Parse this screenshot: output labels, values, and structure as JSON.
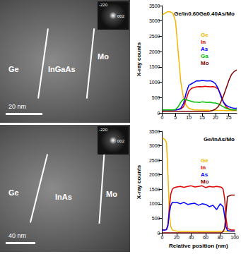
{
  "micrographs": [
    {
      "labels": [
        "Ge",
        "InGaAs",
        "Mo"
      ],
      "scale_bar": "20 nm",
      "inset_labels": [
        "-220",
        "002"
      ]
    },
    {
      "labels": [
        "Ge",
        "InAs",
        "Mo"
      ],
      "scale_bar": "40 nm",
      "inset_labels": [
        "-220",
        "002"
      ]
    }
  ],
  "chart_data": [
    {
      "type": "line",
      "title": "Ge/In0.60Ga0.40As/Mo",
      "y_label": "X-ray counts",
      "x": [
        0,
        1,
        2,
        3,
        4,
        5,
        6,
        7,
        8,
        9,
        10,
        11,
        12,
        13,
        14,
        15,
        16,
        17,
        18,
        19,
        20,
        21,
        22,
        23,
        24,
        25,
        26,
        27,
        28
      ],
      "series": [
        {
          "name": "Ge",
          "color": "#f2b600",
          "values": [
            3200,
            3250,
            3300,
            3300,
            3250,
            3000,
            2000,
            1000,
            500,
            250,
            150,
            120,
            100,
            90,
            90,
            90,
            85,
            85,
            80,
            80,
            80,
            80,
            80,
            80,
            75,
            75,
            75,
            75,
            75
          ]
        },
        {
          "name": "In",
          "color": "#e00000",
          "values": [
            100,
            100,
            100,
            100,
            100,
            100,
            110,
            130,
            200,
            450,
            700,
            800,
            830,
            850,
            860,
            850,
            870,
            860,
            850,
            860,
            840,
            780,
            600,
            350,
            200,
            130,
            110,
            100,
            100
          ]
        },
        {
          "name": "As",
          "color": "#0000ff",
          "values": [
            100,
            100,
            100,
            100,
            100,
            100,
            110,
            150,
            300,
            650,
            900,
            950,
            1000,
            1050,
            1040,
            1060,
            1050,
            1040,
            1050,
            1020,
            950,
            800,
            550,
            350,
            250,
            200,
            170,
            150,
            150
          ]
        },
        {
          "name": "Ga",
          "color": "#00c000",
          "values": [
            100,
            100,
            100,
            100,
            100,
            110,
            200,
            350,
            450,
            430,
            400,
            380,
            350,
            350,
            340,
            360,
            350,
            340,
            350,
            330,
            320,
            300,
            250,
            200,
            150,
            120,
            100,
            100,
            100
          ]
        },
        {
          "name": "Mo",
          "color": "#800000",
          "values": [
            50,
            50,
            50,
            50,
            50,
            50,
            50,
            50,
            50,
            50,
            50,
            50,
            50,
            50,
            50,
            50,
            50,
            50,
            60,
            80,
            120,
            200,
            350,
            550,
            800,
            1050,
            1250,
            1350,
            1400
          ]
        }
      ],
      "xlim": [
        0,
        28
      ],
      "xticks": [
        0,
        5,
        10,
        15,
        20,
        25
      ],
      "ylim": [
        0,
        3500
      ],
      "yticks": [
        0,
        500,
        1000,
        1500,
        2000,
        2500,
        3000,
        3500
      ],
      "grid": false,
      "legend": "upper center"
    },
    {
      "type": "line",
      "title": "Ge/InAs/Mo",
      "x_label": "Relative position (nm)",
      "y_label": "X-ray counts",
      "x": [
        0,
        2,
        4,
        6,
        8,
        10,
        12,
        14,
        16,
        20,
        25,
        30,
        35,
        40,
        45,
        50,
        55,
        60,
        65,
        70,
        75,
        80,
        82,
        84,
        86,
        88,
        90,
        95,
        100
      ],
      "series": [
        {
          "name": "Ge",
          "color": "#f2b600",
          "values": [
            3250,
            3250,
            3200,
            3100,
            2000,
            600,
            200,
            100,
            80,
            60,
            50,
            50,
            50,
            50,
            50,
            50,
            50,
            50,
            50,
            50,
            50,
            50,
            50,
            50,
            50,
            50,
            50,
            50,
            50
          ]
        },
        {
          "name": "In",
          "color": "#e00000",
          "values": [
            100,
            100,
            100,
            120,
            300,
            900,
            1350,
            1500,
            1550,
            1580,
            1600,
            1570,
            1600,
            1620,
            1580,
            1600,
            1620,
            1560,
            1600,
            1580,
            1600,
            1580,
            1560,
            1500,
            1200,
            500,
            150,
            100,
            100
          ]
        },
        {
          "name": "As",
          "color": "#0000ff",
          "values": [
            100,
            100,
            100,
            110,
            250,
            700,
            950,
            1050,
            1050,
            1050,
            1000,
            1050,
            980,
            1000,
            1020,
            950,
            1000,
            980,
            900,
            950,
            800,
            1000,
            950,
            900,
            600,
            200,
            80,
            60,
            60
          ]
        },
        {
          "name": "Mo",
          "color": "#800000",
          "values": [
            0,
            0,
            0,
            0,
            0,
            0,
            0,
            0,
            0,
            0,
            0,
            0,
            0,
            0,
            0,
            0,
            0,
            0,
            0,
            0,
            0,
            0,
            0,
            50,
            150,
            700,
            1250,
            1300,
            1300
          ]
        }
      ],
      "xlim": [
        0,
        100
      ],
      "xticks": [
        0,
        20,
        40,
        60,
        80,
        100
      ],
      "ylim": [
        0,
        3500
      ],
      "yticks": [
        0,
        500,
        1000,
        1500,
        2000,
        2500,
        3000,
        3500
      ],
      "grid": false,
      "legend": "upper center"
    }
  ]
}
